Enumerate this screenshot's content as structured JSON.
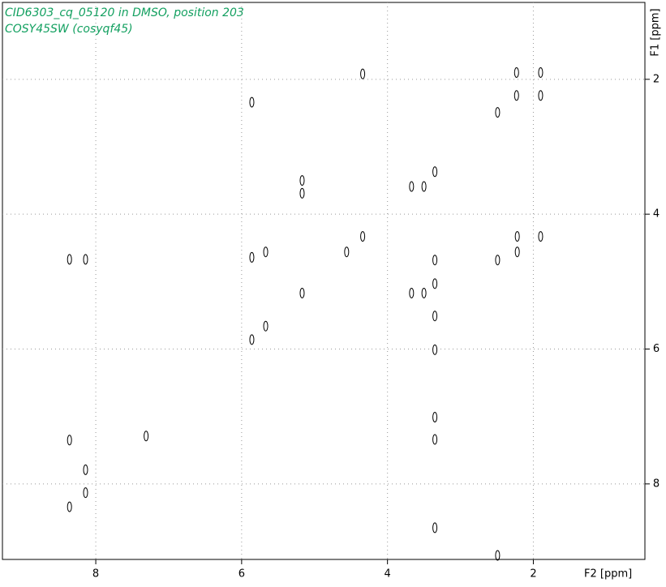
{
  "chart_data": {
    "type": "scatter",
    "title": "CID6303_cq_05120 in DMSO, position 203",
    "subtitle": "COSY45SW (cosyqf45)",
    "x_label": "F2 [ppm]",
    "y_label": "F1 [ppm]",
    "xlim": [
      9.28,
      0.47
    ],
    "ylim": [
      0.86,
      9.12
    ],
    "xticks": [
      8,
      6,
      4,
      2
    ],
    "yticks": [
      2,
      4,
      6,
      8
    ],
    "grid": true,
    "color": "#000000",
    "x": [
      4.34,
      2.23,
      1.9,
      2.23,
      1.9,
      5.86,
      2.49,
      3.35,
      3.67,
      3.5,
      5.17,
      5.17,
      4.34,
      2.22,
      1.9,
      4.56,
      2.22,
      5.67,
      5.86,
      8.14,
      8.36,
      3.35,
      2.49,
      5.17,
      3.67,
      3.5,
      3.35,
      3.35,
      5.67,
      5.86,
      3.35,
      3.35,
      7.31,
      8.36,
      3.35,
      8.14,
      8.14,
      8.36,
      3.35,
      2.49
    ],
    "values": [
      1.92,
      1.9,
      1.9,
      2.24,
      2.24,
      2.34,
      2.49,
      3.37,
      3.59,
      3.59,
      3.5,
      3.69,
      4.33,
      4.33,
      4.33,
      4.56,
      4.56,
      4.56,
      4.64,
      4.67,
      4.67,
      4.68,
      4.68,
      5.17,
      5.17,
      5.17,
      5.03,
      5.51,
      5.66,
      5.86,
      6.01,
      7.01,
      7.29,
      7.35,
      7.34,
      7.79,
      8.13,
      8.34,
      8.65,
      9.06
    ]
  }
}
